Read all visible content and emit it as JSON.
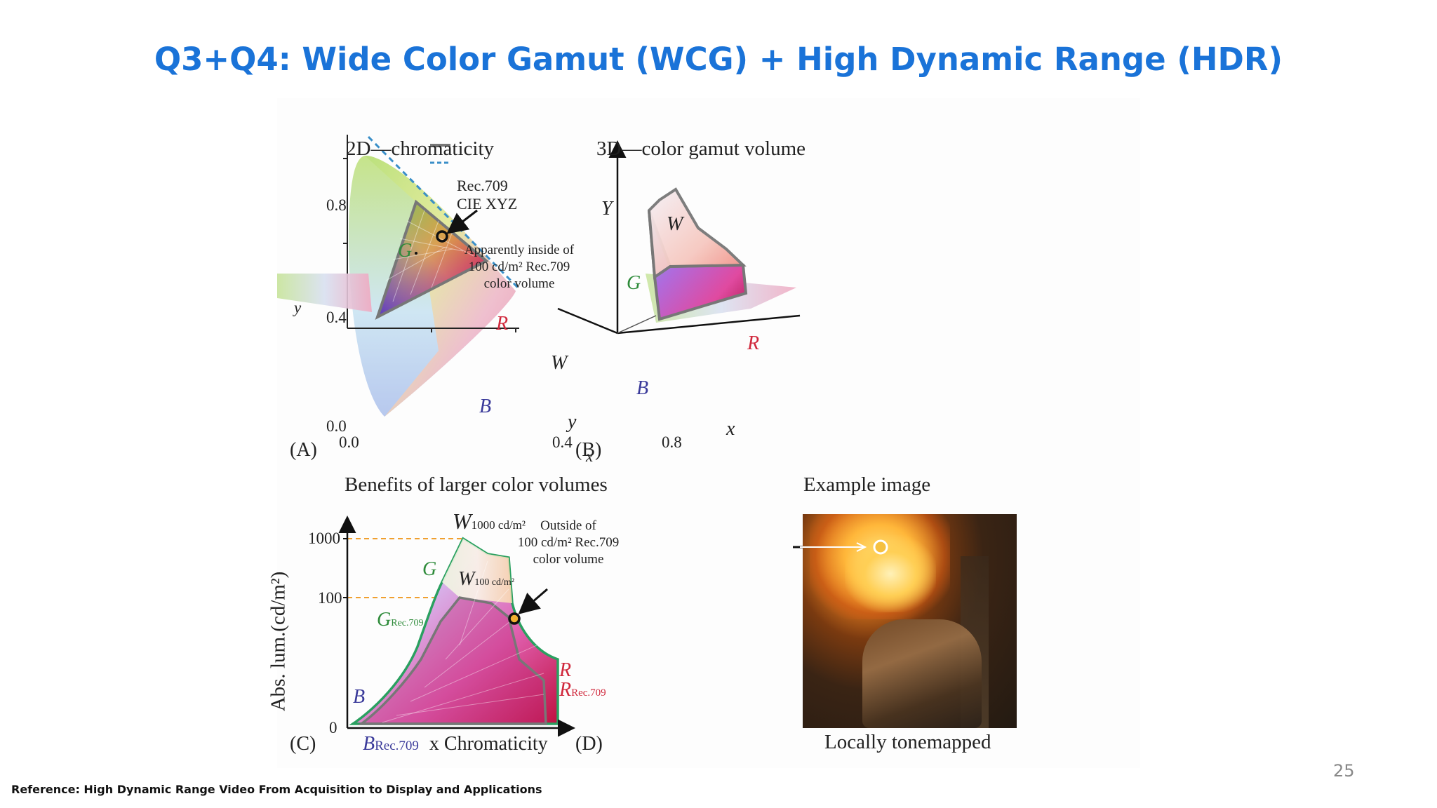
{
  "slide": {
    "title": "Q3+Q4: Wide Color Gamut (WCG) + High Dynamic Range (HDR)",
    "reference": "Reference: High Dynamic Range Video From Acquisition to Display and Applications",
    "page_number": "25"
  },
  "panelA": {
    "heading": "2D—chromaticity",
    "label": "(A)",
    "y_axis": "y",
    "x_axis": "x",
    "y_ticks": [
      "0.8",
      "0.4",
      "0.0"
    ],
    "x_ticks": [
      "0.0",
      "0.4",
      "0.8"
    ],
    "legend": [
      "Rec.709",
      "CIE XYZ"
    ],
    "vertex_G": "G",
    "vertex_R": "R",
    "vertex_B": "B",
    "vertex_W": "W",
    "annotation": [
      "Apparently inside of",
      "100 cd/m² Rec.709",
      "color volume"
    ]
  },
  "panelB": {
    "heading": "3D—color gamut volume",
    "label": "(B)",
    "axis_Y": "Y",
    "axis_x": "x",
    "axis_y": "y",
    "vertex_W": "W",
    "vertex_G": "G",
    "vertex_R": "R",
    "vertex_B": "B"
  },
  "panelC": {
    "heading": "Benefits of larger color volumes",
    "label": "(C)",
    "y_axis": "Abs. lum.(cd/m²)",
    "x_axis": "x Chromaticity",
    "y_ticks": [
      "1000",
      "100",
      "0"
    ],
    "W1000": "W",
    "W1000_sub": "1000 cd/m²",
    "W100": "W",
    "W100_sub": "100 cd/m²",
    "G": "G",
    "G709": "G",
    "G709_sub": "Rec.709",
    "B": "B",
    "B709": "B",
    "B709_sub": "Rec.709",
    "R": "R",
    "R709": "R",
    "R709_sub": "Rec.709",
    "annotation": [
      "Outside of",
      "100 cd/m² Rec.709",
      "color volume"
    ]
  },
  "panelD": {
    "heading": "Example image",
    "label": "(D)",
    "caption": "Locally tonemapped"
  },
  "colors": {
    "title": "#1a73d8",
    "green_label": "#2e8b3a",
    "red_label": "#d0283c",
    "blue_label": "#3a3a9a",
    "guide_orange": "#f0a030"
  }
}
